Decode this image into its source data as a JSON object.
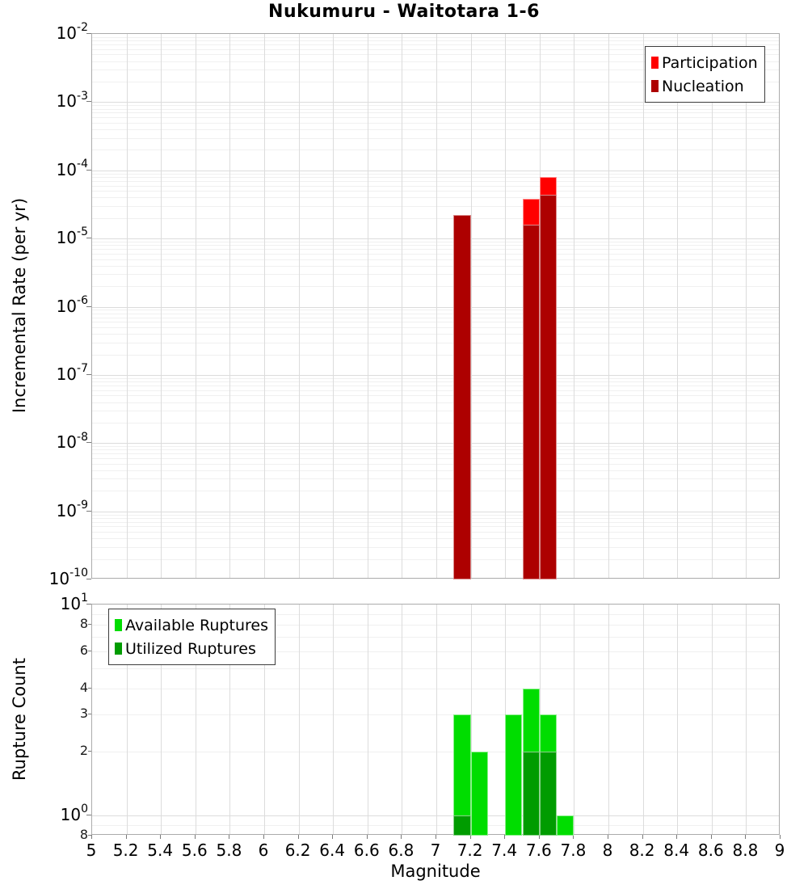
{
  "title": "Nukumuru - Waitotara 1-6",
  "xlabel": "Magnitude",
  "x_tick_labels": [
    "5",
    "5.2",
    "5.4",
    "5.6",
    "5.8",
    "6",
    "6.2",
    "6.4",
    "6.6",
    "6.8",
    "7",
    "7.2",
    "7.4",
    "7.6",
    "7.8",
    "8",
    "8.2",
    "8.4",
    "8.6",
    "8.8",
    "9"
  ],
  "colors": {
    "participation": "#ff0000",
    "nucleation": "#ad0000",
    "available": "#00dd00",
    "utilized": "#009c00",
    "grid_major": "#dcdcdc",
    "grid_minor": "#f0f0f0",
    "spine": "#ababab"
  },
  "chart_data": [
    {
      "type": "bar",
      "title": "Nukumuru - Waitotara 1-6",
      "ylabel": "Incremental Rate (per yr)",
      "xlabel": "",
      "yscale": "log",
      "ylim": [
        1e-10,
        0.01
      ],
      "xlim": [
        5,
        9
      ],
      "bin_width": 0.1,
      "grid": true,
      "legend_position": "top-right",
      "series": [
        {
          "name": "Participation",
          "color": "#ff0000",
          "bins": [
            {
              "mag": 7.15,
              "value": 2.2e-05
            },
            {
              "mag": 7.55,
              "value": 3.8e-05
            },
            {
              "mag": 7.65,
              "value": 8e-05
            }
          ]
        },
        {
          "name": "Nucleation",
          "color": "#ad0000",
          "bins": [
            {
              "mag": 7.15,
              "value": 2.2e-05
            },
            {
              "mag": 7.55,
              "value": 1.6e-05
            },
            {
              "mag": 7.65,
              "value": 4.4e-05
            }
          ]
        }
      ],
      "y_ticks": [
        {
          "mant": "10",
          "exp": "-2",
          "value": 0.01
        },
        {
          "mant": "10",
          "exp": "-3",
          "value": 0.001
        },
        {
          "mant": "10",
          "exp": "-4",
          "value": 0.0001
        },
        {
          "mant": "10",
          "exp": "-5",
          "value": 1e-05
        },
        {
          "mant": "10",
          "exp": "-6",
          "value": 1e-06
        },
        {
          "mant": "10",
          "exp": "-7",
          "value": 1e-07
        },
        {
          "mant": "10",
          "exp": "-8",
          "value": 1e-08
        },
        {
          "mant": "10",
          "exp": "-9",
          "value": 1e-09
        },
        {
          "mant": "10",
          "exp": "-10",
          "value": 1e-10
        }
      ],
      "legend_items": [
        {
          "label": "Participation",
          "color": "#ff0000"
        },
        {
          "label": "Nucleation",
          "color": "#ad0000"
        }
      ]
    },
    {
      "type": "bar",
      "title": "",
      "ylabel": "Rupture Count",
      "xlabel": "Magnitude",
      "yscale": "log",
      "ylim": [
        0.8,
        10
      ],
      "xlim": [
        5,
        9
      ],
      "bin_width": 0.1,
      "grid": true,
      "legend_position": "top-left",
      "series": [
        {
          "name": "Available Ruptures",
          "color": "#00dd00",
          "bins": [
            {
              "mag": 7.15,
              "value": 3
            },
            {
              "mag": 7.25,
              "value": 2
            },
            {
              "mag": 7.45,
              "value": 3
            },
            {
              "mag": 7.55,
              "value": 4
            },
            {
              "mag": 7.65,
              "value": 3
            },
            {
              "mag": 7.75,
              "value": 1
            }
          ]
        },
        {
          "name": "Utilized Ruptures",
          "color": "#009c00",
          "bins": [
            {
              "mag": 7.15,
              "value": 1
            },
            {
              "mag": 7.55,
              "value": 2
            },
            {
              "mag": 7.65,
              "value": 2
            }
          ]
        }
      ],
      "y_ticks": [
        {
          "mant": "10",
          "exp": "1",
          "value": 10
        },
        {
          "label": "8",
          "value": 8
        },
        {
          "label": "6",
          "value": 6
        },
        {
          "label": "4",
          "value": 4
        },
        {
          "label": "3",
          "value": 3
        },
        {
          "label": "2",
          "value": 2
        },
        {
          "mant": "10",
          "exp": "0",
          "value": 1
        },
        {
          "label": "8",
          "value": 0.8
        }
      ],
      "legend_items": [
        {
          "label": "Available Ruptures",
          "color": "#00dd00"
        },
        {
          "label": "Utilized Ruptures",
          "color": "#009c00"
        }
      ]
    }
  ]
}
